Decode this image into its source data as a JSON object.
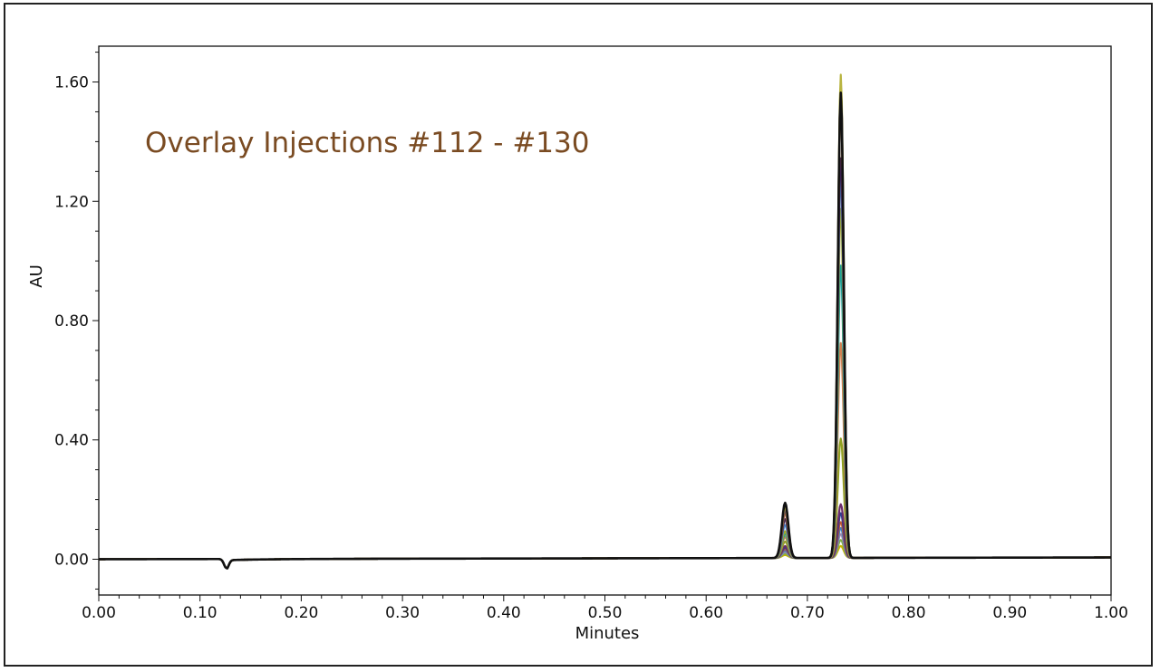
{
  "chart_data": {
    "type": "line",
    "title": "Overlay Injections #112 - #130",
    "title_color": "#7a4b22",
    "xlabel": "Minutes",
    "ylabel": "AU",
    "xlim": [
      0.0,
      1.0
    ],
    "ylim": [
      -0.12,
      1.72
    ],
    "x_ticks": [
      "0.00",
      "0.10",
      "0.20",
      "0.30",
      "0.40",
      "0.50",
      "0.60",
      "0.70",
      "0.80",
      "0.90",
      "1.00"
    ],
    "x_tick_values": [
      0.0,
      0.1,
      0.2,
      0.3,
      0.4,
      0.5,
      0.6,
      0.7,
      0.8,
      0.9,
      1.0
    ],
    "y_ticks": [
      "0.00",
      "0.40",
      "0.80",
      "1.20",
      "1.60"
    ],
    "y_tick_values": [
      0.0,
      0.4,
      0.8,
      1.2,
      1.6
    ],
    "grid": false,
    "baseline": {
      "start": 0.0,
      "end": 0.006
    },
    "dip": {
      "x": 0.126,
      "depth": -0.03
    },
    "peak_times": [
      0.678,
      0.733
    ],
    "series": [
      {
        "color": "#c8b400",
        "values": [
          0.01,
          0.04
        ]
      },
      {
        "color": "#7fae45",
        "values": [
          0.015,
          0.06
        ]
      },
      {
        "color": "#9a8ab0",
        "values": [
          0.02,
          0.08
        ]
      },
      {
        "color": "#3a7fc0",
        "values": [
          0.025,
          0.1
        ]
      },
      {
        "color": "#c05a30",
        "values": [
          0.03,
          0.12
        ]
      },
      {
        "color": "#2f3f8f",
        "values": [
          0.035,
          0.15
        ]
      },
      {
        "color": "#6a2a6a",
        "values": [
          0.04,
          0.18
        ]
      },
      {
        "color": "#8fa020",
        "values": [
          0.055,
          0.4
        ]
      },
      {
        "color": "#d08050",
        "values": [
          0.07,
          0.72
        ]
      },
      {
        "color": "#1fa098",
        "values": [
          0.08,
          0.98
        ]
      },
      {
        "color": "#a6a820",
        "values": [
          0.09,
          1.17
        ]
      },
      {
        "color": "#5090d0",
        "values": [
          0.11,
          1.28
        ]
      },
      {
        "color": "#3a2050",
        "values": [
          0.13,
          1.34
        ]
      },
      {
        "color": "#c07030",
        "values": [
          0.15,
          1.52
        ]
      },
      {
        "color": "#5a3070",
        "values": [
          0.16,
          1.59
        ]
      },
      {
        "color": "#b8b440",
        "values": [
          0.17,
          1.62
        ]
      },
      {
        "color": "#111111",
        "values": [
          0.185,
          1.56
        ]
      }
    ]
  }
}
